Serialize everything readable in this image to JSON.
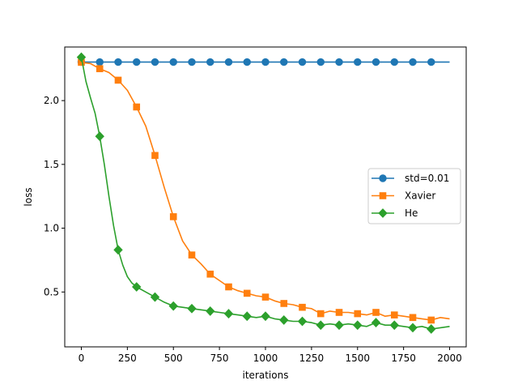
{
  "chart_data": {
    "type": "line",
    "title": "",
    "xlabel": "iterations",
    "ylabel": "loss",
    "xlim": [
      -90,
      2090
    ],
    "ylim": [
      0.07,
      2.42
    ],
    "xticks": [
      0,
      250,
      500,
      750,
      1000,
      1250,
      1500,
      1750,
      2000
    ],
    "xtick_labels": [
      "0",
      "250",
      "500",
      "750",
      "1000",
      "1250",
      "1500",
      "1750",
      "2000"
    ],
    "yticks": [
      0.5,
      1.0,
      1.5,
      2.0
    ],
    "ytick_labels": [
      "0.5",
      "1.0",
      "1.5",
      "2.0"
    ],
    "grid": false,
    "legend_position": "center-right",
    "marker_every": 100,
    "series": [
      {
        "name": "std=0.01",
        "color": "#1f77b4",
        "marker": "circle",
        "points": [
          [
            0,
            2.302
          ],
          [
            100,
            2.302
          ],
          [
            200,
            2.302
          ],
          [
            300,
            2.302
          ],
          [
            400,
            2.302
          ],
          [
            500,
            2.302
          ],
          [
            600,
            2.302
          ],
          [
            700,
            2.302
          ],
          [
            800,
            2.302
          ],
          [
            900,
            2.302
          ],
          [
            1000,
            2.302
          ],
          [
            1100,
            2.302
          ],
          [
            1200,
            2.302
          ],
          [
            1300,
            2.302
          ],
          [
            1400,
            2.302
          ],
          [
            1500,
            2.302
          ],
          [
            1600,
            2.302
          ],
          [
            1700,
            2.302
          ],
          [
            1800,
            2.302
          ],
          [
            1900,
            2.302
          ],
          [
            2000,
            2.302
          ]
        ]
      },
      {
        "name": "Xavier",
        "color": "#ff7f0e",
        "marker": "square",
        "points": [
          [
            0,
            2.3
          ],
          [
            50,
            2.29
          ],
          [
            100,
            2.25
          ],
          [
            150,
            2.22
          ],
          [
            200,
            2.16
          ],
          [
            250,
            2.08
          ],
          [
            300,
            1.95
          ],
          [
            350,
            1.8
          ],
          [
            400,
            1.57
          ],
          [
            450,
            1.32
          ],
          [
            500,
            1.09
          ],
          [
            550,
            0.9
          ],
          [
            600,
            0.79
          ],
          [
            650,
            0.72
          ],
          [
            700,
            0.64
          ],
          [
            750,
            0.59
          ],
          [
            800,
            0.54
          ],
          [
            850,
            0.51
          ],
          [
            900,
            0.49
          ],
          [
            950,
            0.47
          ],
          [
            1000,
            0.46
          ],
          [
            1050,
            0.43
          ],
          [
            1100,
            0.41
          ],
          [
            1150,
            0.4
          ],
          [
            1200,
            0.38
          ],
          [
            1250,
            0.37
          ],
          [
            1300,
            0.33
          ],
          [
            1350,
            0.35
          ],
          [
            1400,
            0.34
          ],
          [
            1450,
            0.34
          ],
          [
            1500,
            0.33
          ],
          [
            1550,
            0.32
          ],
          [
            1600,
            0.34
          ],
          [
            1650,
            0.31
          ],
          [
            1700,
            0.32
          ],
          [
            1750,
            0.31
          ],
          [
            1800,
            0.3
          ],
          [
            1850,
            0.29
          ],
          [
            1900,
            0.28
          ],
          [
            1950,
            0.3
          ],
          [
            2000,
            0.29
          ]
        ]
      },
      {
        "name": "He",
        "color": "#2ca02c",
        "marker": "diamond",
        "points": [
          [
            0,
            2.34
          ],
          [
            25,
            2.15
          ],
          [
            50,
            2.02
          ],
          [
            75,
            1.9
          ],
          [
            100,
            1.72
          ],
          [
            125,
            1.5
          ],
          [
            150,
            1.25
          ],
          [
            175,
            1.02
          ],
          [
            200,
            0.83
          ],
          [
            225,
            0.71
          ],
          [
            250,
            0.62
          ],
          [
            275,
            0.57
          ],
          [
            300,
            0.54
          ],
          [
            350,
            0.5
          ],
          [
            400,
            0.46
          ],
          [
            450,
            0.42
          ],
          [
            500,
            0.39
          ],
          [
            550,
            0.38
          ],
          [
            600,
            0.37
          ],
          [
            650,
            0.36
          ],
          [
            700,
            0.35
          ],
          [
            750,
            0.34
          ],
          [
            800,
            0.33
          ],
          [
            850,
            0.32
          ],
          [
            900,
            0.31
          ],
          [
            950,
            0.3
          ],
          [
            1000,
            0.31
          ],
          [
            1050,
            0.29
          ],
          [
            1100,
            0.28
          ],
          [
            1150,
            0.27
          ],
          [
            1200,
            0.27
          ],
          [
            1250,
            0.26
          ],
          [
            1300,
            0.24
          ],
          [
            1350,
            0.25
          ],
          [
            1400,
            0.24
          ],
          [
            1450,
            0.25
          ],
          [
            1500,
            0.24
          ],
          [
            1550,
            0.23
          ],
          [
            1600,
            0.26
          ],
          [
            1650,
            0.24
          ],
          [
            1700,
            0.24
          ],
          [
            1750,
            0.23
          ],
          [
            1800,
            0.22
          ],
          [
            1850,
            0.23
          ],
          [
            1900,
            0.21
          ],
          [
            1950,
            0.22
          ],
          [
            2000,
            0.23
          ]
        ]
      }
    ]
  }
}
